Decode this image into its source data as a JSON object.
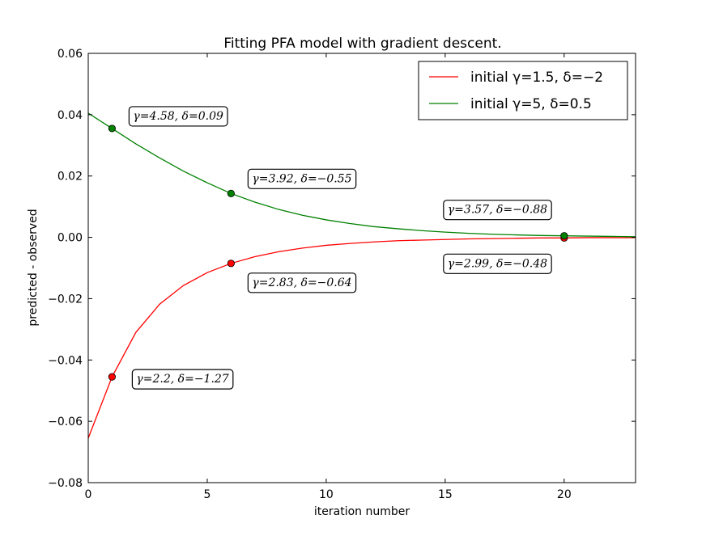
{
  "chart_data": {
    "type": "line",
    "title": "Fitting PFA model with gradient descent.",
    "xlabel": "iteration number",
    "ylabel": "predicted - observed",
    "xlim": [
      0,
      23
    ],
    "ylim": [
      -0.08,
      0.06
    ],
    "xticks": [
      0,
      5,
      10,
      15,
      20
    ],
    "yticks": [
      -0.08,
      -0.06,
      -0.04,
      -0.02,
      0.0,
      0.02,
      0.04,
      0.06
    ],
    "xtick_labels": [
      "0",
      "5",
      "10",
      "15",
      "20"
    ],
    "ytick_labels": [
      "−0.08",
      "−0.06",
      "−0.04",
      "−0.02",
      "0.00",
      "0.02",
      "0.04",
      "0.06"
    ],
    "grid": false,
    "legend_position": "top-right",
    "series": [
      {
        "name": "initial γ=1.5, δ=−2",
        "color": "#ff0000",
        "x": [
          0,
          1,
          2,
          3,
          4,
          5,
          6,
          7,
          8,
          9,
          10,
          11,
          12,
          13,
          14,
          15,
          16,
          17,
          18,
          19,
          20,
          21,
          22,
          23
        ],
        "y": [
          -0.0655,
          -0.0455,
          -0.031,
          -0.0218,
          -0.0157,
          -0.0115,
          -0.0085,
          -0.0063,
          -0.0047,
          -0.0035,
          -0.0026,
          -0.002,
          -0.0015,
          -0.0011,
          -0.0009,
          -0.0007,
          -0.0005,
          -0.0004,
          -0.0003,
          -0.0002,
          -0.0002,
          -0.0001,
          -0.0001,
          -0.0001
        ],
        "markers": [
          {
            "x": 1,
            "y": -0.0455,
            "label": "γ=2.2, δ=−1.27"
          },
          {
            "x": 6,
            "y": -0.0085,
            "label": "γ=2.83, δ=−0.64"
          },
          {
            "x": 20,
            "y": -0.0002,
            "label": "γ=2.99, δ=−0.48"
          }
        ]
      },
      {
        "name": "initial γ=5, δ=0.5",
        "color": "#008000",
        "x": [
          0,
          1,
          2,
          3,
          4,
          5,
          6,
          7,
          8,
          9,
          10,
          11,
          12,
          13,
          14,
          15,
          16,
          17,
          18,
          19,
          20,
          21,
          22,
          23
        ],
        "y": [
          0.0405,
          0.0355,
          0.0305,
          0.0259,
          0.0216,
          0.0178,
          0.0143,
          0.0115,
          0.0091,
          0.0072,
          0.0057,
          0.0045,
          0.0035,
          0.0028,
          0.0022,
          0.0017,
          0.0013,
          0.001,
          0.0008,
          0.0006,
          0.0005,
          0.0004,
          0.0003,
          0.0002
        ],
        "markers": [
          {
            "x": 1,
            "y": 0.0355,
            "label": "γ=4.58, δ=0.09"
          },
          {
            "x": 6,
            "y": 0.0143,
            "label": "γ=3.92, δ=−0.55"
          },
          {
            "x": 20,
            "y": 0.0005,
            "label": "γ=3.57, δ=−0.88"
          }
        ]
      }
    ]
  }
}
